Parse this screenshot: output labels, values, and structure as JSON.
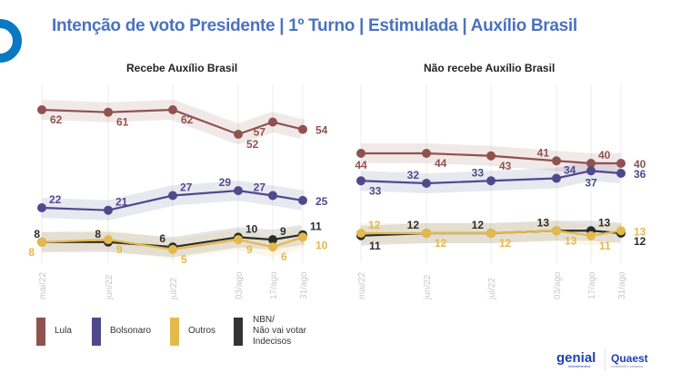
{
  "title": "Intenção de voto Presidente | 1º Turno | Estimulada | Auxílio Brasil",
  "colors": {
    "Lula": "#8f5250",
    "Bolsonaro": "#4f4a8c",
    "Outros": "#e3b94b",
    "NBN": "#2b2b2b",
    "title": "#4b72c0",
    "brand_circle": "#0a78c2"
  },
  "legend": [
    {
      "label": "Lula"
    },
    {
      "label": "Bolsonaro"
    },
    {
      "label": "Outros"
    },
    {
      "lines": [
        "NBN/",
        "Não vai votar",
        "Indecisos"
      ]
    }
  ],
  "logos": {
    "genial": "genial",
    "genial_sub": "investimentos",
    "quaest": "Quaest",
    "quaest_sub": "consultoria e pesquisa"
  },
  "chart_data": [
    {
      "type": "line",
      "title": "Recebe Auxílio Brasil",
      "categories": [
        "mai/22",
        "jun/22",
        "jul/22",
        "03/ago",
        "17/ago",
        "31/ago"
      ],
      "series": [
        {
          "name": "Lula",
          "values": [
            62,
            61,
            62,
            52,
            57,
            54
          ]
        },
        {
          "name": "Bolsonaro",
          "values": [
            22,
            21,
            27,
            29,
            27,
            25
          ]
        },
        {
          "name": "NBN/Não vai votar/Indecisos",
          "values": [
            8,
            8,
            6,
            10,
            9,
            11
          ]
        },
        {
          "name": "Outros",
          "values": [
            8,
            9,
            5,
            9,
            6,
            10
          ]
        }
      ],
      "grid": "vertical"
    },
    {
      "type": "line",
      "title": "Não recebe Auxílio Brasil",
      "categories": [
        "mai/22",
        "jun/22",
        "jul/22",
        "03/ago",
        "17/ago",
        "31/ago"
      ],
      "series": [
        {
          "name": "Lula",
          "values": [
            44,
            44,
            43,
            41,
            40,
            40
          ]
        },
        {
          "name": "Bolsonaro",
          "values": [
            33,
            32,
            33,
            34,
            37,
            36
          ]
        },
        {
          "name": "NBN/Não vai votar/Indecisos",
          "values": [
            11,
            12,
            12,
            13,
            13,
            12
          ]
        },
        {
          "name": "Outros",
          "values": [
            12,
            12,
            12,
            13,
            11,
            13
          ]
        }
      ],
      "grid": "vertical"
    }
  ]
}
